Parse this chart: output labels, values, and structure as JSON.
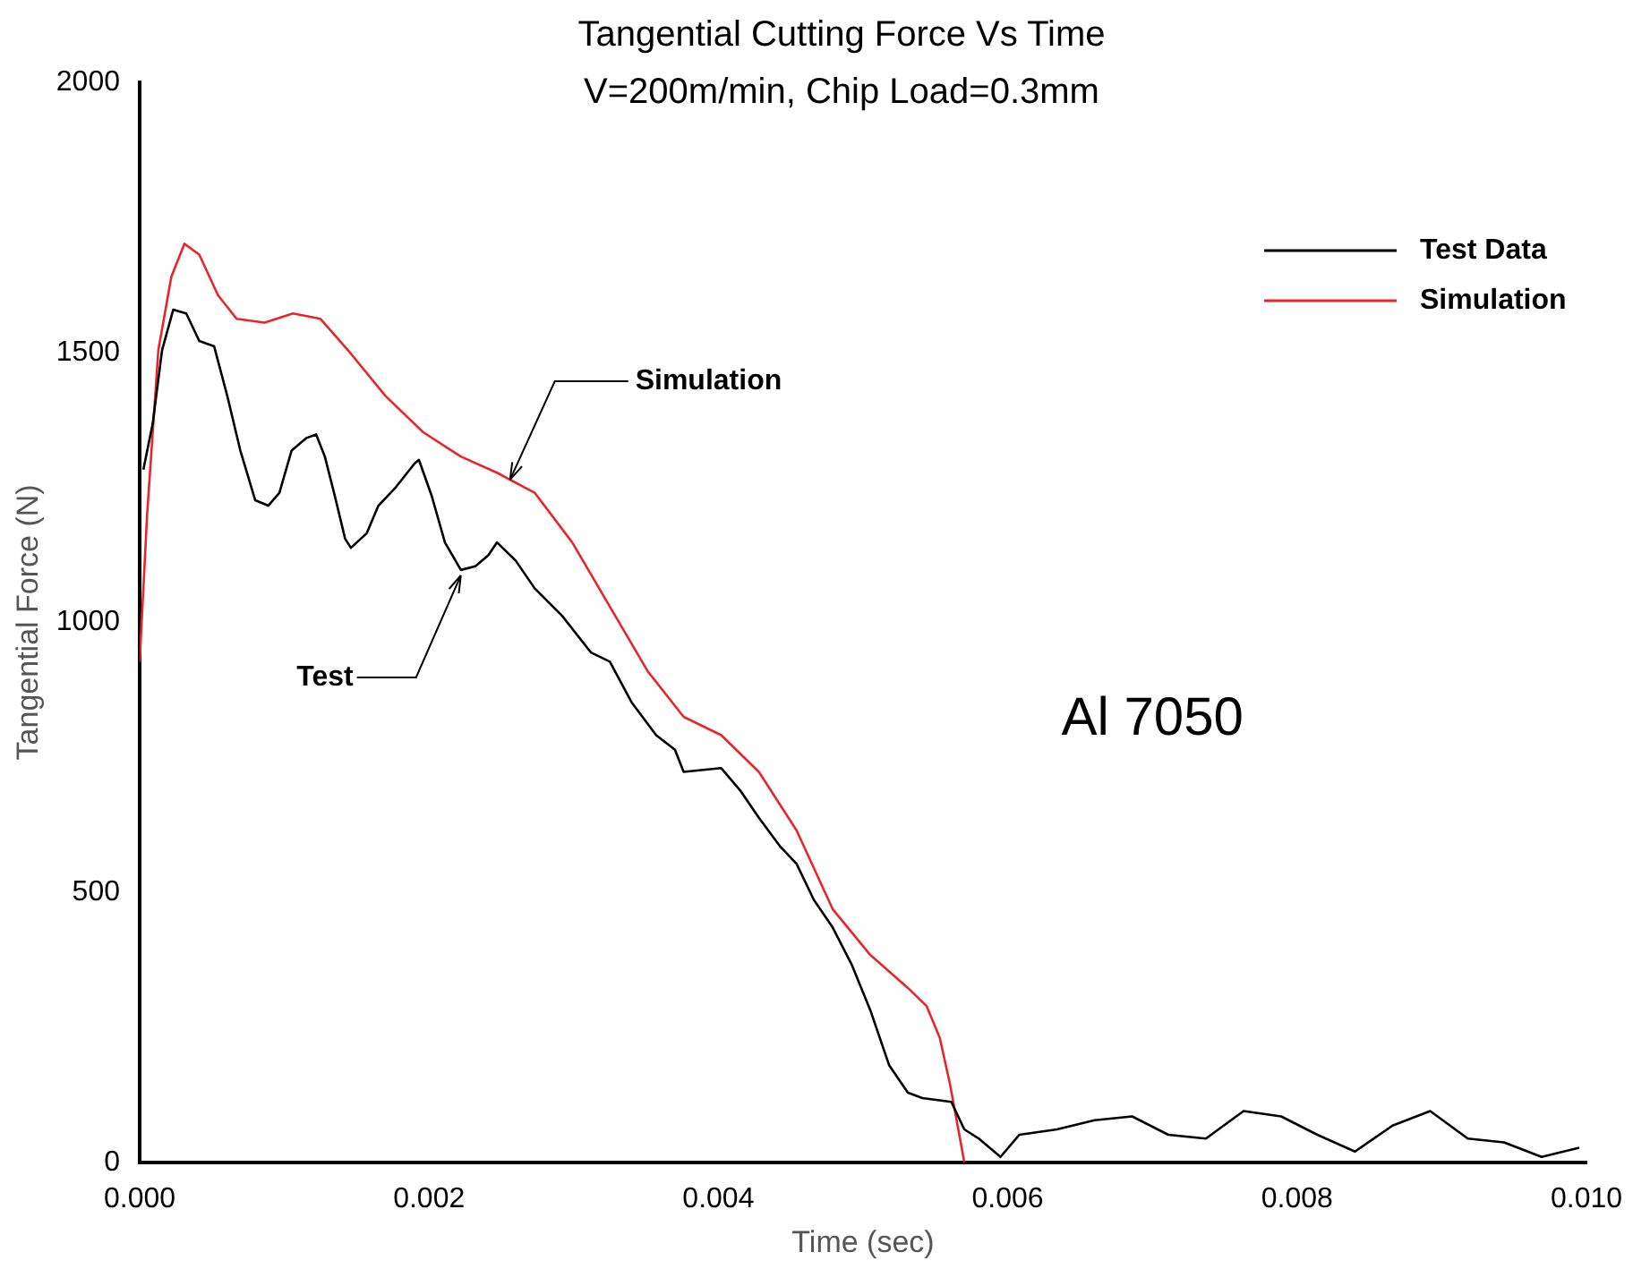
{
  "chart_data": {
    "type": "line",
    "title": "Tangential Cutting Force Vs Time",
    "subtitle": "V=200m/min, Chip Load=0.3mm",
    "xlabel": "Time (sec)",
    "ylabel": "Tangential Force (N)",
    "xlim": [
      0,
      0.01
    ],
    "xticks": [
      {
        "value": 0,
        "label": "0.000"
      },
      {
        "value": 0.002,
        "label": "0.002"
      },
      {
        "value": 0.004,
        "label": "0.004"
      },
      {
        "value": 0.006,
        "label": "0.006"
      },
      {
        "value": 0.008,
        "label": "0.008"
      },
      {
        "value": 0.01,
        "label": "0.010"
      }
    ],
    "ylim": [
      0,
      2000
    ],
    "yticks": [
      0,
      500,
      1000,
      1500,
      2000
    ],
    "grid": false,
    "legend": "top right",
    "marker": "none",
    "line_style": "solid",
    "series": [
      {
        "name": "Test Data",
        "color": "#000000",
        "x": [
          2.58e-05,
          9.02e-05,
          0.000155,
          0.000232,
          0.000322,
          0.000412,
          0.000515,
          0.000606,
          0.000696,
          0.000799,
          0.000889,
          0.000966,
          0.00105,
          0.00115,
          0.00122,
          0.00128,
          0.00135,
          0.00142,
          0.00146,
          0.00157,
          0.00165,
          0.00177,
          0.0019,
          0.00193,
          0.00202,
          0.00211,
          0.00222,
          0.00232,
          0.00241,
          0.00247,
          0.0026,
          0.00273,
          0.00292,
          0.00312,
          0.00325,
          0.0034,
          0.00357,
          0.0037,
          0.00376,
          0.00402,
          0.00415,
          0.00428,
          0.00443,
          0.00454,
          0.00466,
          0.00479,
          0.00492,
          0.00505,
          0.00518,
          0.00531,
          0.00541,
          0.00561,
          0.0057,
          0.0058,
          0.00595,
          0.00608,
          0.00634,
          0.0066,
          0.00686,
          0.00711,
          0.00737,
          0.00763,
          0.00789,
          0.00814,
          0.0084,
          0.00866,
          0.00892,
          0.00918,
          0.00943,
          0.00969,
          0.00995
        ],
        "values": [
          1283,
          1368,
          1504,
          1579,
          1572,
          1521,
          1511,
          1419,
          1318,
          1226,
          1216,
          1240,
          1318,
          1341,
          1348,
          1307,
          1233,
          1155,
          1138,
          1165,
          1216,
          1250,
          1294,
          1301,
          1233,
          1148,
          1097,
          1104,
          1124,
          1148,
          1114,
          1063,
          1012,
          944,
          927,
          852,
          791,
          764,
          723,
          730,
          689,
          638,
          584,
          553,
          486,
          435,
          367,
          282,
          180,
          129,
          119,
          112,
          61,
          44,
          10,
          51,
          61,
          78,
          85,
          51,
          44,
          95,
          85,
          51,
          20,
          68,
          95,
          44,
          37,
          10,
          27
        ]
      },
      {
        "name": "Simulation",
        "color": "#e8262a",
        "x": [
          0,
          5.15e-05,
          0.000129,
          0.000219,
          0.000309,
          0.000412,
          0.000541,
          0.00067,
          0.000863,
          0.00106,
          0.00125,
          0.00144,
          0.0017,
          0.00196,
          0.00222,
          0.00247,
          0.00273,
          0.00299,
          0.00325,
          0.00351,
          0.00376,
          0.00402,
          0.00428,
          0.00454,
          0.00479,
          0.00505,
          0.00531,
          0.00544,
          0.00553,
          0.0056,
          0.00567,
          0.0057
        ],
        "values": [
          927,
          1199,
          1504,
          1640,
          1701,
          1681,
          1606,
          1562,
          1555,
          1572,
          1562,
          1504,
          1419,
          1352,
          1307,
          1277,
          1240,
          1148,
          1029,
          910,
          825,
          791,
          723,
          615,
          469,
          384,
          323,
          289,
          231,
          146,
          44,
          0
        ]
      }
    ],
    "annotations": [
      {
        "text": "Simulation",
        "x": 0.00256,
        "y": 1264
      },
      {
        "text": "Test",
        "x": 0.00222,
        "y": 1087
      },
      "Al 7050"
    ]
  }
}
